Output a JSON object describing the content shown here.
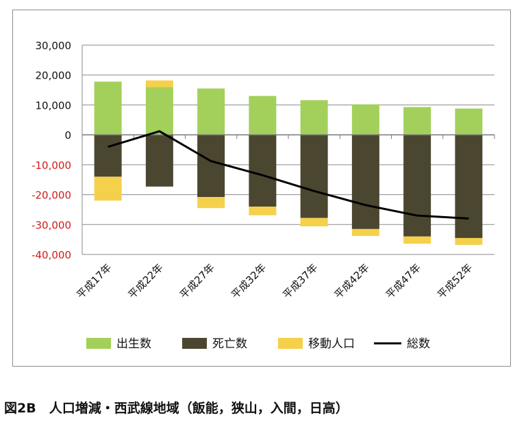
{
  "caption": "図2B　人口増減・西武線地域（飯能，狭山，入間，日高）",
  "chart_data": {
    "type": "bar",
    "stacked": true,
    "categories": [
      "平成17年",
      "平成22年",
      "平成27年",
      "平成32年",
      "平成37年",
      "平成42年",
      "平成47年",
      "平成52年"
    ],
    "ylim": [
      -40000,
      30000
    ],
    "yticks": [
      30000,
      20000,
      10000,
      0,
      -10000,
      -20000,
      -30000,
      -40000
    ],
    "ytick_labels": [
      "30,000",
      "20,000",
      "10,000",
      "0",
      "-10,000",
      "-20,000",
      "-30,000",
      "-40,000"
    ],
    "grid": true,
    "legend_position": "bottom",
    "series": [
      {
        "name": "出生数",
        "type": "bar",
        "color": "#a3d05a",
        "values": [
          17800,
          16000,
          15500,
          13000,
          11600,
          10200,
          9300,
          8800
        ]
      },
      {
        "name": "死亡数",
        "type": "bar",
        "color": "#4b4630",
        "values": [
          -14000,
          -17300,
          -20800,
          -24000,
          -27800,
          -31500,
          -34000,
          -34500
        ]
      },
      {
        "name": "移動人口",
        "type": "bar",
        "color": "#f5d04a",
        "values": [
          -8000,
          2200,
          -3700,
          -2900,
          -2800,
          -2300,
          -2400,
          -2300
        ]
      },
      {
        "name": "総数",
        "type": "line",
        "color": "#000000",
        "values": [
          -4000,
          1200,
          -8800,
          -13500,
          -18800,
          -23500,
          -27000,
          -28000
        ]
      }
    ]
  }
}
